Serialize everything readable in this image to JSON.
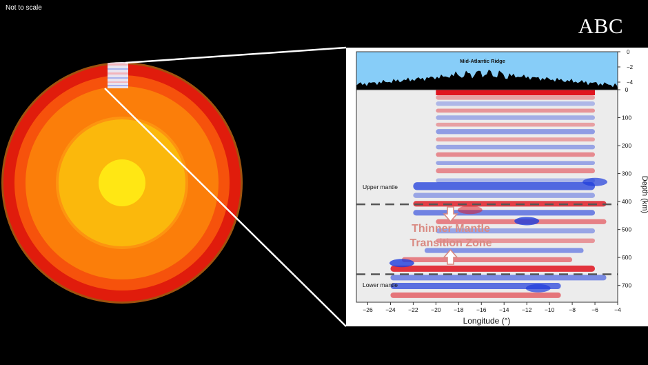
{
  "header": {
    "scale_note": "Not to scale",
    "logo": "ABC"
  },
  "earth": {
    "layer_colors": [
      "#a0520e",
      "#e01c0c",
      "#f6520c",
      "#fb7e0a",
      "#fd9410",
      "#fbb80c",
      "#ffe714"
    ]
  },
  "figure": {
    "ridge_label": "Mid-Atlantic Ridge",
    "region_upper": "Upper mantle",
    "region_lower": "Lower mantle",
    "annotation_line1": "Thinner Mantle",
    "annotation_line2": "Transition Zone",
    "colors": {
      "sea": "#87cdf8",
      "red": "#e0141e",
      "blue": "#1e3cdc",
      "annotation": "#d98a82"
    }
  },
  "chart_data": {
    "type": "heatmap",
    "title": "",
    "xlabel": "Longitude (°)",
    "ylabel": "Depth (km)",
    "elevation_axis": {
      "ticks": [
        0,
        -2,
        -4
      ],
      "range": [
        -5,
        0
      ]
    },
    "xlim": [
      -27,
      -4
    ],
    "ylim": [
      0,
      760
    ],
    "x_ticks": [
      -26,
      -24,
      -22,
      -20,
      -18,
      -16,
      -14,
      -12,
      -10,
      -8,
      -6,
      -4
    ],
    "y_ticks": [
      0,
      100,
      200,
      300,
      400,
      500,
      600,
      700
    ],
    "discontinuities_km": [
      410,
      660
    ],
    "ridge_axis_longitude_range": [
      -20,
      -6
    ]
  }
}
